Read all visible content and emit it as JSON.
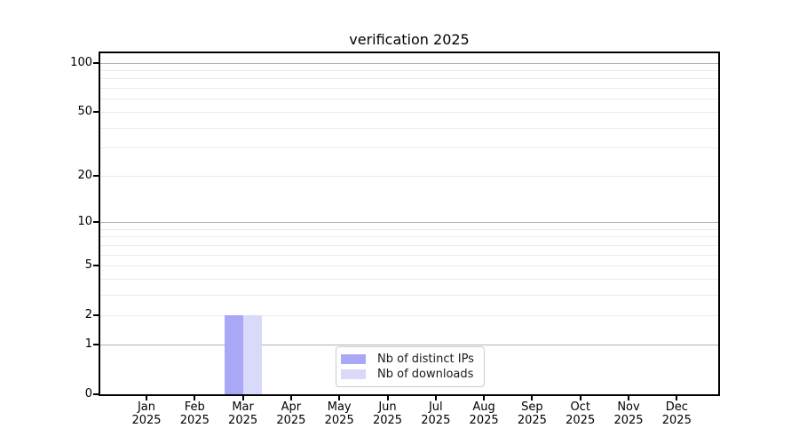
{
  "title": "verification 2025",
  "chart_data": {
    "type": "bar",
    "title": "verification 2025",
    "categories": [
      "Jan 2025",
      "Feb 2025",
      "Mar 2025",
      "Apr 2025",
      "May 2025",
      "Jun 2025",
      "Jul 2025",
      "Aug 2025",
      "Sep 2025",
      "Oct 2025",
      "Nov 2025",
      "Dec 2025"
    ],
    "series": [
      {
        "name": "Nb of distinct IPs",
        "color": "#a8a8f7",
        "values": [
          0,
          0,
          2,
          0,
          0,
          0,
          0,
          0,
          0,
          0,
          0,
          0
        ]
      },
      {
        "name": "Nb of downloads",
        "color": "#d9d9fa",
        "values": [
          0,
          0,
          2,
          0,
          0,
          0,
          0,
          0,
          0,
          0,
          0,
          0
        ]
      }
    ],
    "xlabel": "",
    "ylabel": "",
    "yscale": "log1p",
    "ylim": [
      0,
      114
    ],
    "yticks_labeled": [
      0,
      1,
      2,
      5,
      10,
      20,
      50,
      100
    ],
    "gridlines": {
      "major": [
        1,
        10,
        100
      ],
      "minor": [
        2,
        3,
        4,
        5,
        6,
        7,
        8,
        9,
        20,
        30,
        40,
        50,
        60,
        70,
        80,
        90
      ]
    },
    "grid": "horizontal",
    "legend": {
      "position": "lower center"
    },
    "colors": {
      "grid_major": "#b2b2b2",
      "grid_minor": "#ebebeb",
      "spine": "#000000",
      "text": "#000000",
      "background": "#ffffff"
    }
  }
}
